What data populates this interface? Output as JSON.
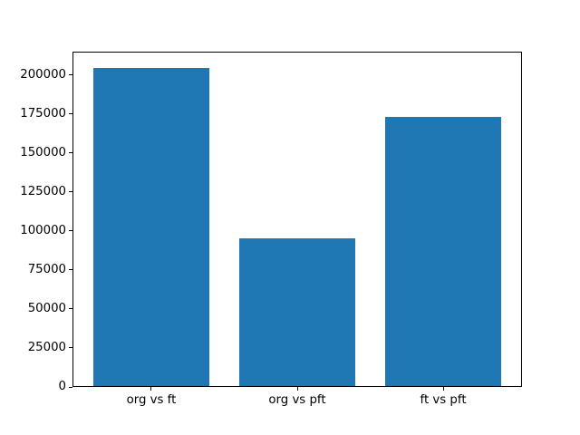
{
  "chart_data": {
    "type": "bar",
    "title": "",
    "xlabel": "",
    "ylabel": "",
    "categories": [
      "org vs ft",
      "org vs pft",
      "ft vs pft"
    ],
    "values": [
      204800,
      95200,
      173500
    ],
    "yticks": [
      0,
      25000,
      50000,
      75000,
      100000,
      125000,
      150000,
      175000,
      200000
    ],
    "ylim": [
      0,
      215100
    ],
    "xlim": [
      -0.54,
      2.54
    ],
    "bar_width": 0.8,
    "bar_color": "#1f77b4",
    "spine_color": "#000000",
    "tick_label_color": "#000000",
    "background_color": "#ffffff",
    "grid": false,
    "legend": null
  }
}
